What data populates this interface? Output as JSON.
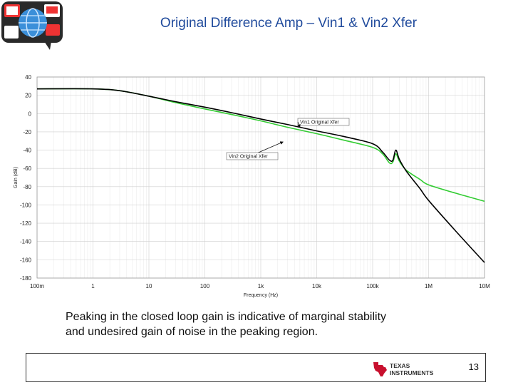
{
  "slide": {
    "title": "Original Difference Amp – Vin1 & Vin2 Xfer",
    "caption_line1": "Peaking in the closed loop gain is indicative of marginal stability",
    "caption_line2": "and undesired gain of noise in the peaking region.",
    "page_number": "13",
    "footer_logo_text_1": "TEXAS",
    "footer_logo_text_2": "INSTRUMENTS"
  },
  "chart_data": {
    "type": "line",
    "xlabel": "Frequency (Hz)",
    "ylabel": "Gain (dB)",
    "x_scale": "log",
    "xlim": [
      0.1,
      10000000
    ],
    "ylim": [
      -180,
      40
    ],
    "grid": true,
    "x_ticks": [
      {
        "value": 0.1,
        "label": "100m"
      },
      {
        "value": 1,
        "label": "1"
      },
      {
        "value": 10,
        "label": "10"
      },
      {
        "value": 100,
        "label": "100"
      },
      {
        "value": 1000,
        "label": "1k"
      },
      {
        "value": 10000,
        "label": "10k"
      },
      {
        "value": 100000,
        "label": "100k"
      },
      {
        "value": 1000000,
        "label": "1M"
      },
      {
        "value": 10000000,
        "label": "10M"
      }
    ],
    "y_ticks": [
      40,
      20,
      0,
      -20,
      -40,
      -60,
      -80,
      -100,
      -120,
      -140,
      -160,
      -180
    ],
    "series": [
      {
        "name": "Vin1 Original Xfer",
        "color": "#000000",
        "points": [
          [
            0.1,
            27
          ],
          [
            1,
            27
          ],
          [
            3,
            25
          ],
          [
            10,
            19
          ],
          [
            30,
            13
          ],
          [
            100,
            7
          ],
          [
            300,
            1
          ],
          [
            1000,
            -6
          ],
          [
            3000,
            -12
          ],
          [
            10000,
            -19
          ],
          [
            30000,
            -25
          ],
          [
            100000,
            -33
          ],
          [
            150000,
            -42
          ],
          [
            200000,
            -51
          ],
          [
            230000,
            -51
          ],
          [
            260000,
            -40
          ],
          [
            300000,
            -50
          ],
          [
            400000,
            -63
          ],
          [
            700000,
            -82
          ],
          [
            1000000,
            -95
          ],
          [
            3000000,
            -128
          ],
          [
            10000000,
            -163
          ]
        ]
      },
      {
        "name": "Vin2 Original Xfer",
        "color": "#33cc33",
        "points": [
          [
            0.1,
            27
          ],
          [
            1,
            27
          ],
          [
            3,
            25
          ],
          [
            10,
            19
          ],
          [
            30,
            12
          ],
          [
            100,
            5
          ],
          [
            300,
            -1
          ],
          [
            1000,
            -8
          ],
          [
            3000,
            -15
          ],
          [
            10000,
            -22
          ],
          [
            30000,
            -29
          ],
          [
            100000,
            -37
          ],
          [
            150000,
            -44
          ],
          [
            200000,
            -54
          ],
          [
            230000,
            -53
          ],
          [
            260000,
            -44
          ],
          [
            300000,
            -52
          ],
          [
            400000,
            -62
          ],
          [
            700000,
            -72
          ],
          [
            1000000,
            -78
          ],
          [
            3000000,
            -87
          ],
          [
            10000000,
            -96
          ]
        ]
      }
    ],
    "annotations": [
      {
        "text": "Vin1 Original Xfer",
        "arrow_to": [
          5000,
          -15
        ]
      },
      {
        "text": "Vin2 Original Xfer",
        "arrow_to": [
          2500,
          -31
        ]
      }
    ]
  }
}
